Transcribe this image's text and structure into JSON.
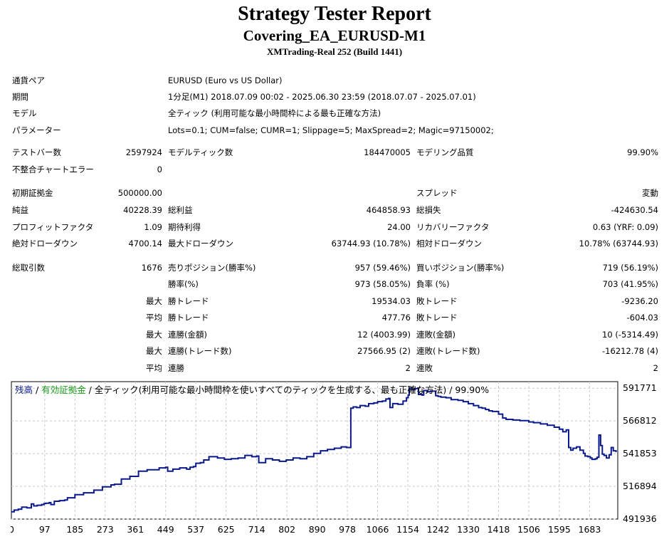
{
  "report": {
    "title": "Strategy Tester Report",
    "expert": "Covering_EA_EURUSD-M1",
    "server": "XMTrading-Real 252 (Build 1441)"
  },
  "settings": {
    "symbol_label": "通貨ペア",
    "symbol_value": "EURUSD (Euro vs US Dollar)",
    "period_label": "期間",
    "period_value": "1分足(M1) 2018.07.09 00:02 - 2025.06.30 23:59 (2018.07.07 - 2025.07.01)",
    "model_label": "モデル",
    "model_value": "全ティック (利用可能な最小時間枠による最も正確な方法)",
    "params_label": "パラメーター",
    "params_value": "Lots=0.1; CUM=false; CUMR=1; Slippage=5; MaxSpread=2; Magic=97150002;"
  },
  "stats": {
    "bars_label": "テストバー数",
    "bars_value": "2597924",
    "ticks_label": "モデルティック数",
    "ticks_value": "184470005",
    "quality_label": "モデリング品質",
    "quality_value": "99.90%",
    "mismatch_label": "不整合チャートエラー",
    "mismatch_value": "0",
    "deposit_label": "初期証拠金",
    "deposit_value": "500000.00",
    "spread_label": "スプレッド",
    "spread_value": "変動",
    "net_label": "純益",
    "net_value": "40228.39",
    "gross_profit_label": "総利益",
    "gross_profit_value": "464858.93",
    "gross_loss_label": "総損失",
    "gross_loss_value": "-424630.54",
    "pf_label": "プロフィットファクタ",
    "pf_value": "1.09",
    "expected_label": "期待利得",
    "expected_value": "24.00",
    "recovery_label": "リカバリーファクタ",
    "recovery_value": "0.63 (YRF: 0.09)",
    "abs_dd_label": "絶対ドローダウン",
    "abs_dd_value": "4700.14",
    "max_dd_label": "最大ドローダウン",
    "max_dd_value": "63744.93 (10.78%)",
    "rel_dd_label": "相対ドローダウン",
    "rel_dd_value": "10.78% (63744.93)",
    "trades_label": "総取引数",
    "trades_value": "1676",
    "short_label": "売りポジション(勝率%)",
    "short_value": "957 (59.46%)",
    "long_label": "買いポジション(勝率%)",
    "long_value": "719 (56.19%)",
    "win_label": "勝率(%)",
    "win_value": "973 (58.05%)",
    "loss_label": "負率 (%)",
    "loss_value": "703 (41.95%)",
    "largest_prefix": "最大",
    "largest_win_label": "勝トレード",
    "largest_win_value": "19534.03",
    "largest_loss_label": "敗トレード",
    "largest_loss_value": "-9236.20",
    "average_prefix": "平均",
    "avg_win_label": "勝トレード",
    "avg_win_value": "477.76",
    "avg_loss_label": "敗トレード",
    "avg_loss_value": "-604.03",
    "max_consec_prefix": "最大",
    "max_consec_win_label": "連勝(金額)",
    "max_consec_win_value": "12 (4003.99)",
    "max_consec_loss_label": "連敗(金額)",
    "max_consec_loss_value": "10 (-5314.49)",
    "max_consec2_prefix": "最大",
    "max_consec_profit_label": "連勝(トレード数)",
    "max_consec_profit_value": "27566.95 (2)",
    "max_consec_lossamt_label": "連敗(トレード数)",
    "max_consec_lossamt_value": "-16212.78 (4)",
    "avg_consec_prefix": "平均",
    "avg_consec_win_label": "連勝",
    "avg_consec_win_value": "2",
    "avg_consec_loss_label": "連敗",
    "avg_consec_loss_value": "2"
  },
  "chart_legend": {
    "balance": "残高",
    "sep1": " / ",
    "equity": "有効証拠金",
    "sep2": " / ",
    "rest": "全ティック(利用可能な最小時間枠を使いすべてのティックを生成する、最も正確な方法) / 99.90%"
  },
  "chart_data": {
    "type": "line",
    "series": [
      {
        "values": [
          [
            0,
            497500
          ],
          [
            8,
            498800
          ],
          [
            20,
            499500
          ],
          [
            30,
            501000
          ],
          [
            45,
            500500
          ],
          [
            58,
            503500
          ],
          [
            65,
            502000
          ],
          [
            75,
            502500
          ],
          [
            88,
            503000
          ],
          [
            95,
            503800
          ],
          [
            100,
            504000
          ],
          [
            110,
            504500
          ],
          [
            115,
            503000
          ],
          [
            125,
            505500
          ],
          [
            140,
            506000
          ],
          [
            155,
            506500
          ],
          [
            163,
            508200
          ],
          [
            185,
            510500
          ],
          [
            210,
            512000
          ],
          [
            240,
            514000
          ],
          [
            265,
            516500
          ],
          [
            290,
            518000
          ],
          [
            300,
            518500
          ],
          [
            320,
            522500
          ],
          [
            345,
            524500
          ],
          [
            370,
            528500
          ],
          [
            395,
            529500
          ],
          [
            430,
            531000
          ],
          [
            449,
            531500
          ],
          [
            455,
            528500
          ],
          [
            470,
            530000
          ],
          [
            490,
            531000
          ],
          [
            510,
            530000
          ],
          [
            520,
            531500
          ],
          [
            530,
            532000
          ],
          [
            537,
            534500
          ],
          [
            550,
            535000
          ],
          [
            560,
            537000
          ],
          [
            575,
            539500
          ],
          [
            600,
            538500
          ],
          [
            620,
            537500
          ],
          [
            640,
            538000
          ],
          [
            660,
            538500
          ],
          [
            680,
            540500
          ],
          [
            700,
            539500
          ],
          [
            714,
            540000
          ],
          [
            720,
            535000
          ],
          [
            740,
            538000
          ],
          [
            760,
            537000
          ],
          [
            780,
            536000
          ],
          [
            800,
            537000
          ],
          [
            820,
            538500
          ],
          [
            840,
            538000
          ],
          [
            860,
            539500
          ],
          [
            880,
            542000
          ],
          [
            900,
            544000
          ],
          [
            920,
            545000
          ],
          [
            940,
            546000
          ],
          [
            960,
            547000
          ],
          [
            975,
            546500
          ],
          [
            985,
            546500
          ],
          [
            988,
            576500
          ],
          [
            995,
            577500
          ],
          [
            1005,
            577000
          ],
          [
            1015,
            578500
          ],
          [
            1030,
            578000
          ],
          [
            1040,
            580000
          ],
          [
            1055,
            580500
          ],
          [
            1066,
            581500
          ],
          [
            1080,
            582000
          ],
          [
            1090,
            583500
          ],
          [
            1098,
            584000
          ],
          [
            1102,
            577000
          ],
          [
            1110,
            580000
          ],
          [
            1125,
            579500
          ],
          [
            1140,
            582000
          ],
          [
            1150,
            584500
          ],
          [
            1155,
            586500
          ],
          [
            1158,
            592000
          ],
          [
            1165,
            590500
          ],
          [
            1175,
            591500
          ],
          [
            1185,
            587000
          ],
          [
            1195,
            586500
          ],
          [
            1200,
            590000
          ],
          [
            1210,
            589000
          ],
          [
            1220,
            589500
          ],
          [
            1235,
            586000
          ],
          [
            1242,
            585500
          ],
          [
            1250,
            585000
          ],
          [
            1265,
            584500
          ],
          [
            1280,
            583000
          ],
          [
            1300,
            582500
          ],
          [
            1315,
            581500
          ],
          [
            1330,
            580000
          ],
          [
            1345,
            578500
          ],
          [
            1360,
            577000
          ],
          [
            1370,
            576500
          ],
          [
            1380,
            575500
          ],
          [
            1390,
            574500
          ],
          [
            1400,
            574000
          ],
          [
            1418,
            572000
          ],
          [
            1430,
            569000
          ],
          [
            1440,
            568000
          ],
          [
            1460,
            567500
          ],
          [
            1480,
            567000
          ],
          [
            1506,
            566000
          ],
          [
            1520,
            565500
          ],
          [
            1540,
            564500
          ],
          [
            1560,
            563500
          ],
          [
            1580,
            562000
          ],
          [
            1595,
            560500
          ],
          [
            1605,
            558500
          ],
          [
            1615,
            560000
          ],
          [
            1622,
            546500
          ],
          [
            1628,
            544500
          ],
          [
            1635,
            546000
          ],
          [
            1645,
            547000
          ],
          [
            1655,
            544500
          ],
          [
            1665,
            542000
          ],
          [
            1670,
            540000
          ],
          [
            1678,
            539500
          ],
          [
            1685,
            538500
          ],
          [
            1690,
            537500
          ],
          [
            1700,
            538000
          ],
          [
            1705,
            539000
          ],
          [
            1710,
            556000
          ],
          [
            1715,
            548000
          ],
          [
            1720,
            541500
          ],
          [
            1725,
            540500
          ],
          [
            1732,
            538500
          ],
          [
            1740,
            541000
          ],
          [
            1746,
            546500
          ],
          [
            1752,
            544000
          ],
          [
            1760,
            543000
          ]
        ]
      }
    ],
    "x_ticks": [
      "0",
      "97",
      "185",
      "273",
      "361",
      "449",
      "537",
      "625",
      "714",
      "802",
      "890",
      "978",
      "1066",
      "1154",
      "1242",
      "1330",
      "1418",
      "1506",
      "1595",
      "1683"
    ],
    "y_ticks": [
      "591771",
      "566812",
      "541853",
      "516894",
      "491936"
    ],
    "xlim": [
      0,
      1765
    ],
    "ylim": [
      491936,
      596763
    ],
    "grid": true,
    "colors": {
      "balance": "#0a1a8c",
      "equity": "#1a9a1a",
      "grid": "#c8c8c8"
    }
  }
}
